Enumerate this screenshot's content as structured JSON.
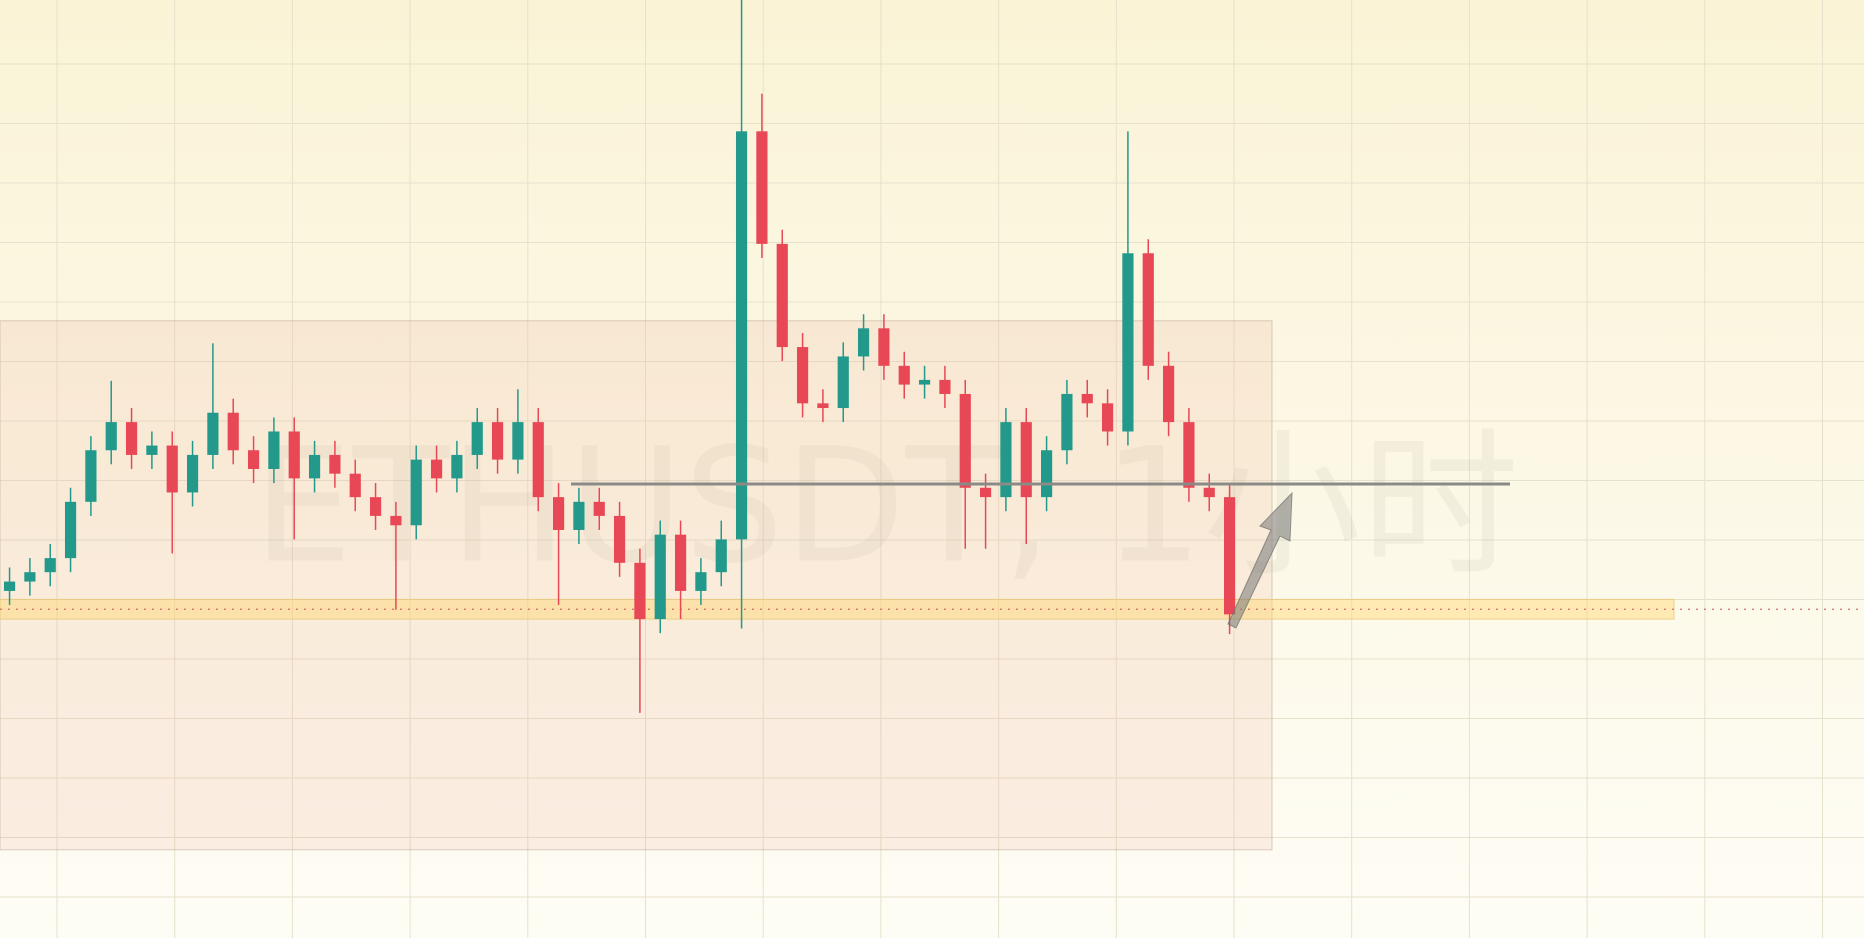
{
  "chart_data": {
    "type": "candlestick",
    "watermark": "ETHUSDT, 1小时",
    "open": [
      37,
      38,
      39,
      40.5,
      46.5,
      52,
      55,
      51.5,
      52.5,
      47.5,
      51.5,
      56,
      52,
      50,
      54,
      49,
      51.5,
      49.5,
      47,
      45,
      44,
      51,
      49,
      51.5,
      55,
      51,
      55,
      47,
      43.5,
      46.5,
      45,
      40,
      34,
      43,
      37,
      39,
      42.5,
      86,
      74,
      63,
      57,
      56.5,
      62,
      65,
      61,
      59,
      59.5,
      58,
      48,
      47,
      55,
      47,
      52,
      58,
      57,
      54,
      73,
      61,
      55,
      48,
      47
    ],
    "high": [
      39.5,
      40.5,
      42,
      48,
      53.5,
      59.4,
      56.5,
      54,
      54,
      53,
      63.4,
      57.5,
      53.5,
      55.5,
      55.5,
      53,
      53,
      51,
      48.5,
      46.5,
      52.5,
      52.5,
      53,
      56.5,
      56.5,
      58.5,
      56.5,
      48.5,
      48,
      48,
      46.5,
      41.5,
      44.5,
      44.5,
      40.5,
      44.5,
      100,
      90,
      75.5,
      64.5,
      58.5,
      63.5,
      66.5,
      66.5,
      62.5,
      61,
      61,
      59.5,
      49.5,
      56.5,
      56.5,
      53.5,
      59.5,
      59.5,
      58.5,
      86,
      74.5,
      62.5,
      56.5,
      49.5,
      48.5
    ],
    "low": [
      35.5,
      36.5,
      37.5,
      39,
      45,
      50.5,
      50,
      50,
      41,
      46,
      50,
      50.5,
      48.5,
      48.5,
      42.5,
      47.5,
      48,
      45.5,
      43.5,
      35,
      42.5,
      47.5,
      47.5,
      50,
      49.5,
      49.5,
      45.5,
      35.5,
      42,
      43.5,
      38.5,
      24,
      32.5,
      34,
      35.5,
      37.5,
      33,
      72.5,
      61.5,
      55.5,
      55,
      55,
      60.5,
      59.5,
      57.5,
      57.5,
      56.5,
      41.5,
      41.5,
      45.5,
      42,
      45.5,
      50.5,
      55.5,
      52.5,
      52.5,
      59.5,
      53.5,
      46.5,
      45.5,
      32.4
    ],
    "close": [
      38,
      39,
      40.5,
      46.5,
      52,
      55,
      51.5,
      52.5,
      47.5,
      51.5,
      56,
      52,
      50,
      54,
      49,
      51.5,
      49.5,
      47,
      45,
      44,
      51,
      49,
      51.5,
      55,
      51,
      55,
      47,
      43.5,
      46.5,
      45,
      40,
      34,
      43,
      37,
      39,
      42.5,
      86,
      74,
      63,
      57,
      56.5,
      62,
      65,
      61,
      59,
      59.5,
      58,
      48,
      47,
      55,
      47,
      52,
      58,
      57,
      54,
      73,
      61,
      55,
      48,
      47,
      34.5
    ],
    "up_color": "#22998b",
    "down_color": "#e84855",
    "resistance_line": 48.4,
    "support_zone": [
      34.0,
      36.1
    ],
    "range_box": [
      9.4,
      65.8
    ],
    "xlim": [
      -0.47,
      91.2
    ],
    "ylim": [
      0,
      100
    ]
  }
}
